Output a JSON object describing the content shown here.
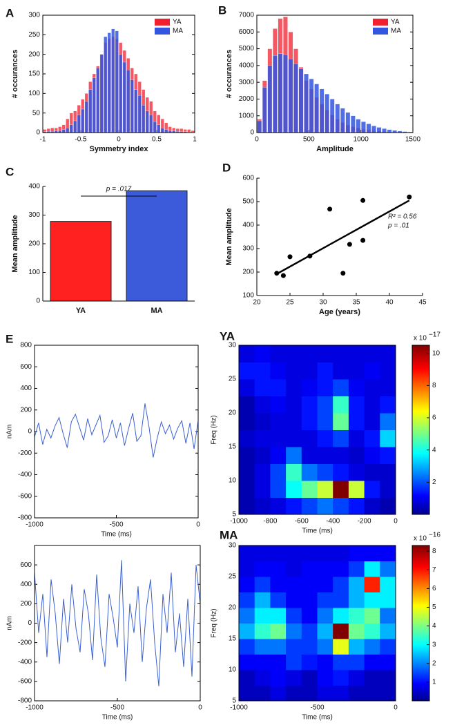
{
  "chart_data": [
    {
      "type": "histogram",
      "label": "A",
      "xlabel": "Symmetry index",
      "ylabel": "# occurances",
      "legend": "upper right",
      "bins": [
        -1,
        -0.95,
        -0.9,
        -0.85,
        -0.8,
        -0.75,
        -0.7,
        -0.65,
        -0.6,
        -0.55,
        -0.5,
        -0.45,
        -0.4,
        -0.35,
        -0.3,
        -0.25,
        -0.2,
        -0.15,
        -0.1,
        -0.05,
        0,
        0.05,
        0.1,
        0.15,
        0.2,
        0.25,
        0.3,
        0.35,
        0.4,
        0.45,
        0.5,
        0.55,
        0.6,
        0.65,
        0.7,
        0.75,
        0.8,
        0.85,
        0.9,
        0.95,
        1
      ],
      "series": [
        {
          "name": "YA",
          "color": "#f0202e",
          "values": [
            8,
            10,
            12,
            12,
            15,
            20,
            35,
            50,
            55,
            70,
            85,
            100,
            130,
            150,
            170,
            200,
            230,
            240,
            245,
            240,
            230,
            210,
            190,
            165,
            150,
            130,
            110,
            90,
            80,
            55,
            45,
            35,
            25,
            15,
            12,
            10,
            10,
            8,
            8,
            5
          ]
        },
        {
          "name": "MA",
          "color": "#3355e0",
          "values": [
            2,
            3,
            3,
            4,
            5,
            8,
            12,
            20,
            30,
            45,
            60,
            80,
            110,
            140,
            165,
            200,
            245,
            255,
            265,
            260,
            200,
            180,
            160,
            135,
            110,
            95,
            70,
            55,
            45,
            28,
            20,
            12,
            8,
            5,
            4,
            3,
            2,
            2,
            1,
            1
          ]
        }
      ],
      "xlim": [
        -1,
        1
      ],
      "ylim": [
        0,
        300
      ],
      "xticks": [
        -1,
        -0.5,
        0,
        0.5,
        1
      ],
      "yticks": [
        0,
        50,
        100,
        150,
        200,
        250,
        300
      ]
    },
    {
      "type": "histogram",
      "label": "B",
      "xlabel": "Amplitude",
      "ylabel": "# occurances",
      "legend": "upper right",
      "bins": [
        0,
        50,
        100,
        150,
        200,
        250,
        300,
        350,
        400,
        450,
        500,
        550,
        600,
        650,
        700,
        750,
        800,
        850,
        900,
        950,
        1000,
        1050,
        1100,
        1150,
        1200,
        1250,
        1300,
        1350,
        1400,
        1450,
        1500
      ],
      "series": [
        {
          "name": "YA",
          "color": "#f0202e",
          "values": [
            800,
            3100,
            5000,
            6200,
            6800,
            6900,
            6000,
            5000,
            3900,
            3100,
            2600,
            2100,
            1700,
            1350,
            1050,
            800,
            600,
            450,
            350,
            270,
            200,
            150,
            110,
            80,
            60,
            45,
            30,
            20,
            15,
            10
          ]
        },
        {
          "name": "MA",
          "color": "#3355e0",
          "values": [
            700,
            2700,
            4000,
            4600,
            4700,
            4650,
            4400,
            4100,
            3800,
            3500,
            3200,
            2900,
            2600,
            2300,
            2000,
            1700,
            1450,
            1200,
            1000,
            800,
            650,
            520,
            400,
            310,
            240,
            180,
            130,
            90,
            60,
            40
          ]
        }
      ],
      "xlim": [
        0,
        1500
      ],
      "ylim": [
        0,
        7000
      ],
      "xticks": [
        0,
        500,
        1000,
        1500
      ],
      "yticks": [
        0,
        1000,
        2000,
        3000,
        4000,
        5000,
        6000,
        7000
      ]
    },
    {
      "type": "bar",
      "label": "C",
      "ylabel": "Mean amplitude",
      "categories": [
        "YA",
        "MA"
      ],
      "values": [
        278,
        385
      ],
      "colors": [
        "#ff2020",
        "#3b5bdb"
      ],
      "ylim": [
        0,
        400
      ],
      "yticks": [
        0,
        100,
        200,
        300,
        400
      ],
      "annotation": "p = .017"
    },
    {
      "type": "scatter",
      "label": "D",
      "xlabel": "Age (years)",
      "ylabel": "Mean amplitude",
      "x": [
        23,
        24,
        25,
        28,
        31,
        33,
        34,
        36,
        36,
        43
      ],
      "values": [
        195,
        185,
        265,
        268,
        468,
        195,
        318,
        505,
        335,
        520
      ],
      "fit": {
        "x": [
          23,
          43
        ],
        "values": [
          192,
          505
        ]
      },
      "annotations": [
        "R² = 0.56",
        "p = .01"
      ],
      "xlim": [
        20,
        45
      ],
      "ylim": [
        100,
        600
      ],
      "xticks": [
        20,
        25,
        30,
        35,
        40,
        45
      ],
      "yticks": [
        100,
        200,
        300,
        400,
        500,
        600
      ],
      "color": "#000000"
    },
    {
      "type": "line",
      "label": "E",
      "xlabel": "Time (ms)",
      "ylabel": "nAm",
      "color": "#3a5fd0",
      "x": [
        -1000,
        -975,
        -950,
        -925,
        -900,
        -875,
        -850,
        -825,
        -800,
        -775,
        -750,
        -725,
        -700,
        -675,
        -650,
        -625,
        -600,
        -575,
        -550,
        -525,
        -500,
        -475,
        -450,
        -425,
        -400,
        -375,
        -350,
        -325,
        -300,
        -275,
        -250,
        -225,
        -200,
        -175,
        -150,
        -125,
        -100,
        -75,
        -50,
        -25,
        0
      ],
      "values": [
        -50,
        80,
        -120,
        20,
        -60,
        50,
        130,
        -20,
        -150,
        90,
        160,
        40,
        -80,
        120,
        -30,
        60,
        150,
        -100,
        -40,
        110,
        -60,
        80,
        -130,
        30,
        170,
        -90,
        -40,
        260,
        40,
        -240,
        -60,
        90,
        -20,
        60,
        -70,
        30,
        100,
        -110,
        80,
        -160,
        100
      ],
      "xlim": [
        -1000,
        0
      ],
      "ylim": [
        -800,
        800
      ],
      "xticks": [
        -1000,
        -500,
        0
      ],
      "yticks": [
        -800,
        -600,
        -400,
        -200,
        0,
        200,
        400,
        600,
        800
      ]
    },
    {
      "type": "heatmap",
      "title": "YA",
      "xlabel": "Time (ms)",
      "ylabel": "Freq (Hz)",
      "x": [
        -950,
        -850,
        -750,
        -650,
        -550,
        -450,
        -350,
        -250,
        -150,
        -50
      ],
      "y": [
        6.25,
        8.75,
        11.25,
        13.75,
        16.25,
        18.75,
        21.25,
        23.75,
        26.25,
        28.75
      ],
      "z": [
        [
          0.5,
          0.8,
          1,
          1.5,
          2,
          2.5,
          2,
          1.5,
          0.8,
          0.5
        ],
        [
          0.5,
          1,
          2,
          4,
          5,
          6,
          10.5,
          6,
          1.5,
          0.8
        ],
        [
          0.5,
          1,
          2,
          4.5,
          2.5,
          2,
          1.5,
          1,
          0.8,
          0.8
        ],
        [
          0.5,
          0.8,
          1.2,
          2.5,
          1,
          1,
          1,
          0.8,
          1.2,
          1.5
        ],
        [
          0.8,
          1,
          1,
          1,
          1,
          1.5,
          2,
          1,
          1.5,
          3.5
        ],
        [
          0.5,
          0.8,
          1,
          1,
          1.5,
          2,
          5,
          1.5,
          1,
          2.5
        ],
        [
          0.5,
          1,
          1.2,
          1,
          1.5,
          2,
          4.5,
          1.5,
          1,
          1.5
        ],
        [
          1,
          1.5,
          1.5,
          1,
          1.2,
          1.5,
          2,
          1.2,
          1,
          1
        ],
        [
          1.5,
          1.5,
          1.2,
          1,
          1,
          1.5,
          1,
          1,
          1.2,
          1
        ],
        [
          1,
          1.2,
          1,
          1,
          1,
          1,
          1,
          1,
          1,
          1
        ]
      ],
      "xlim": [
        -1000,
        0
      ],
      "ylim": [
        5,
        30
      ],
      "xticks": [
        -1000,
        -800,
        -600,
        -400,
        -200,
        0
      ],
      "yticks": [
        5,
        10,
        15,
        20,
        25,
        30
      ],
      "clim": [
        0,
        10.5
      ],
      "cticks": [
        2,
        4,
        6,
        8,
        10
      ],
      "colorbar_label": "x 10",
      "colorbar_exponent": "−17"
    },
    {
      "type": "line",
      "xlabel": "Time (ms)",
      "ylabel": "nAm",
      "color": "#3a5fd0",
      "x": [
        -1000,
        -975,
        -950,
        -925,
        -900,
        -875,
        -850,
        -825,
        -800,
        -775,
        -750,
        -725,
        -700,
        -675,
        -650,
        -625,
        -600,
        -575,
        -550,
        -525,
        -500,
        -475,
        -450,
        -425,
        -400,
        -375,
        -350,
        -325,
        -300,
        -275,
        -250,
        -225,
        -200,
        -175,
        -150,
        -125,
        -100,
        -75,
        -50,
        -25,
        0
      ],
      "values": [
        520,
        -100,
        300,
        -350,
        450,
        100,
        -420,
        250,
        -200,
        400,
        -50,
        -300,
        350,
        100,
        -380,
        500,
        -150,
        -450,
        300,
        50,
        -250,
        650,
        -600,
        200,
        -100,
        380,
        -400,
        150,
        450,
        -200,
        -650,
        300,
        -100,
        520,
        -300,
        100,
        -450,
        250,
        -550,
        600,
        200
      ],
      "xlim": [
        -1000,
        0
      ],
      "ylim": [
        -800,
        800
      ],
      "xticks": [
        -1000,
        -500,
        0
      ],
      "yticks": [
        -800,
        -600,
        -400,
        -200,
        0,
        200,
        400,
        600
      ]
    },
    {
      "type": "heatmap",
      "title": "MA",
      "xlabel": "Time (ms)",
      "ylabel": "Freq (Hz)",
      "x": [
        -950,
        -850,
        -750,
        -650,
        -550,
        -450,
        -350,
        -250,
        -150,
        -50
      ],
      "y": [
        6.25,
        8.75,
        11.25,
        13.75,
        16.25,
        18.75,
        21.25,
        23.75,
        26.25,
        28.75
      ],
      "z": [
        [
          0.5,
          0.5,
          0.8,
          0.5,
          0.5,
          0.8,
          0.8,
          0.5,
          0.5,
          0.5
        ],
        [
          0.5,
          0.8,
          1,
          0.8,
          0.5,
          1,
          1.2,
          0.8,
          0.5,
          0.5
        ],
        [
          1,
          1,
          1,
          1.5,
          1.2,
          1,
          1.5,
          1.5,
          1,
          1
        ],
        [
          1.5,
          2,
          2,
          1.5,
          1.5,
          2,
          5,
          2.5,
          2,
          1.5
        ],
        [
          2.5,
          3.5,
          4,
          2,
          1.5,
          2.5,
          8.3,
          4,
          3.5,
          2.5
        ],
        [
          2,
          3,
          3,
          1.5,
          1,
          2,
          3,
          3.5,
          4,
          2
        ],
        [
          1.5,
          2.5,
          1.5,
          1,
          1,
          1.5,
          1.5,
          2.5,
          3,
          3
        ],
        [
          1,
          1.5,
          1,
          1,
          1,
          1,
          1.5,
          2.5,
          7,
          3
        ],
        [
          0.8,
          1,
          1,
          0.8,
          1,
          1,
          1,
          1.5,
          3,
          2
        ],
        [
          0.8,
          0.8,
          0.8,
          0.8,
          0.8,
          0.8,
          0.8,
          1,
          1,
          1
        ]
      ],
      "xlim": [
        -1000,
        0
      ],
      "ylim": [
        5,
        30
      ],
      "xticks": [
        -1000,
        -500,
        0
      ],
      "yticks": [
        5,
        10,
        15,
        20,
        25,
        30
      ],
      "clim": [
        0,
        8.3
      ],
      "cticks": [
        1,
        2,
        3,
        4,
        5,
        6,
        7,
        8
      ],
      "colorbar_label": "x 10",
      "colorbar_exponent": "−16"
    }
  ]
}
